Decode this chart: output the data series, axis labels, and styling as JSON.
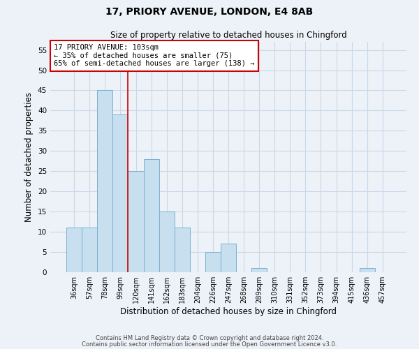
{
  "title_line1": "17, PRIORY AVENUE, LONDON, E4 8AB",
  "title_line2": "Size of property relative to detached houses in Chingford",
  "xlabel": "Distribution of detached houses by size in Chingford",
  "ylabel": "Number of detached properties",
  "bar_labels": [
    "36sqm",
    "57sqm",
    "78sqm",
    "99sqm",
    "120sqm",
    "141sqm",
    "162sqm",
    "183sqm",
    "204sqm",
    "226sqm",
    "247sqm",
    "268sqm",
    "289sqm",
    "310sqm",
    "331sqm",
    "352sqm",
    "373sqm",
    "394sqm",
    "415sqm",
    "436sqm",
    "457sqm"
  ],
  "bar_values": [
    11,
    11,
    45,
    39,
    25,
    28,
    15,
    11,
    0,
    5,
    7,
    0,
    1,
    0,
    0,
    0,
    0,
    0,
    0,
    1,
    0
  ],
  "bar_color": "#c8dff0",
  "bar_edge_color": "#7ab0d0",
  "ylim": [
    0,
    57
  ],
  "yticks": [
    0,
    5,
    10,
    15,
    20,
    25,
    30,
    35,
    40,
    45,
    50,
    55
  ],
  "vline_x_idx": 3,
  "vline_color": "#cc0000",
  "annotation_title": "17 PRIORY AVENUE: 103sqm",
  "annotation_line2": "← 35% of detached houses are smaller (75)",
  "annotation_line3": "65% of semi-detached houses are larger (138) →",
  "annotation_box_color": "#ffffff",
  "annotation_border_color": "#cc0000",
  "footer_line1": "Contains HM Land Registry data © Crown copyright and database right 2024.",
  "footer_line2": "Contains public sector information licensed under the Open Government Licence v3.0.",
  "grid_color": "#c8d8e8",
  "background_color": "#edf2f8"
}
